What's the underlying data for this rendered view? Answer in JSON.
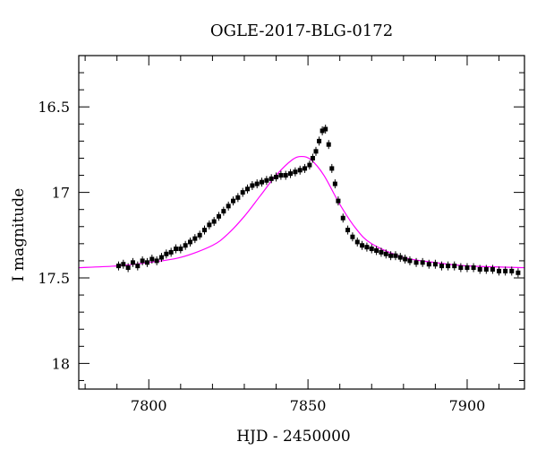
{
  "chart_data": {
    "type": "scatter",
    "title": "OGLE-2017-BLG-0172",
    "xlabel": "HJD - 2450000",
    "ylabel": "I magnitude",
    "xlim": [
      7778,
      7918
    ],
    "ylim": [
      18.15,
      16.2
    ],
    "y_inverted": true,
    "grid": false,
    "legend": "none",
    "x_ticks": [
      7800,
      7850,
      7900
    ],
    "x_tick_labels": [
      "7800",
      "7850",
      "7900"
    ],
    "y_ticks": [
      16.5,
      17,
      17.5,
      18
    ],
    "y_tick_labels": [
      "16.5",
      "17",
      "17.5",
      "18"
    ],
    "colors": {
      "data": "#000000",
      "model": "#ff00ff"
    },
    "series": [
      {
        "kind": "points",
        "x": [
          7790.5,
          7792.0,
          7793.5,
          7795.0,
          7796.5,
          7798.0,
          7799.5,
          7801.0,
          7802.5,
          7804.0,
          7805.5,
          7807.0,
          7808.5,
          7810.0,
          7811.5,
          7813.0,
          7814.5,
          7816.0,
          7817.5,
          7819.0,
          7820.5,
          7822.0,
          7823.5,
          7825.0,
          7826.5,
          7828.0,
          7829.5,
          7831.0,
          7832.5,
          7834.0,
          7835.5,
          7837.0,
          7838.5,
          7840.0,
          7841.5,
          7843.0,
          7844.5,
          7846.0,
          7847.5,
          7849.0,
          7850.5,
          7851.5,
          7852.5,
          7853.5,
          7854.5,
          7855.5,
          7856.5,
          7857.5,
          7858.5,
          7859.5,
          7861.0,
          7862.5,
          7864.0,
          7865.5,
          7867.0,
          7868.5,
          7870.0,
          7871.5,
          7873.0,
          7874.5,
          7876.0,
          7877.5,
          7879.0,
          7880.5,
          7882.0,
          7884.0,
          7886.0,
          7888.0,
          7890.0,
          7892.0,
          7894.0,
          7896.0,
          7898.0,
          7900.0,
          7902.0,
          7904.0,
          7906.0,
          7908.0,
          7910.0,
          7912.0,
          7914.0,
          7916.0
        ],
        "y": [
          17.43,
          17.42,
          17.44,
          17.41,
          17.43,
          17.4,
          17.41,
          17.39,
          17.4,
          17.38,
          17.36,
          17.35,
          17.33,
          17.33,
          17.31,
          17.29,
          17.27,
          17.25,
          17.22,
          17.19,
          17.17,
          17.14,
          17.11,
          17.08,
          17.05,
          17.03,
          17.0,
          16.98,
          16.96,
          16.95,
          16.94,
          16.93,
          16.92,
          16.91,
          16.9,
          16.9,
          16.89,
          16.88,
          16.87,
          16.86,
          16.84,
          16.8,
          16.76,
          16.7,
          16.64,
          16.63,
          16.72,
          16.86,
          16.95,
          17.05,
          17.15,
          17.22,
          17.26,
          17.29,
          17.31,
          17.32,
          17.33,
          17.34,
          17.35,
          17.36,
          17.37,
          17.37,
          17.38,
          17.39,
          17.4,
          17.41,
          17.41,
          17.42,
          17.42,
          17.43,
          17.43,
          17.43,
          17.44,
          17.44,
          17.44,
          17.45,
          17.45,
          17.45,
          17.46,
          17.46,
          17.46,
          17.47
        ]
      },
      {
        "kind": "model",
        "x": [
          7778,
          7790,
          7800,
          7810,
          7820,
          7825,
          7830,
          7835,
          7840,
          7845,
          7848,
          7851,
          7855,
          7860,
          7865,
          7870,
          7880,
          7890,
          7900,
          7918
        ],
        "y": [
          17.44,
          17.43,
          17.41,
          17.38,
          17.31,
          17.24,
          17.14,
          17.02,
          16.9,
          16.81,
          16.79,
          16.81,
          16.9,
          17.07,
          17.21,
          17.3,
          17.38,
          17.41,
          17.43,
          17.44
        ]
      }
    ]
  }
}
